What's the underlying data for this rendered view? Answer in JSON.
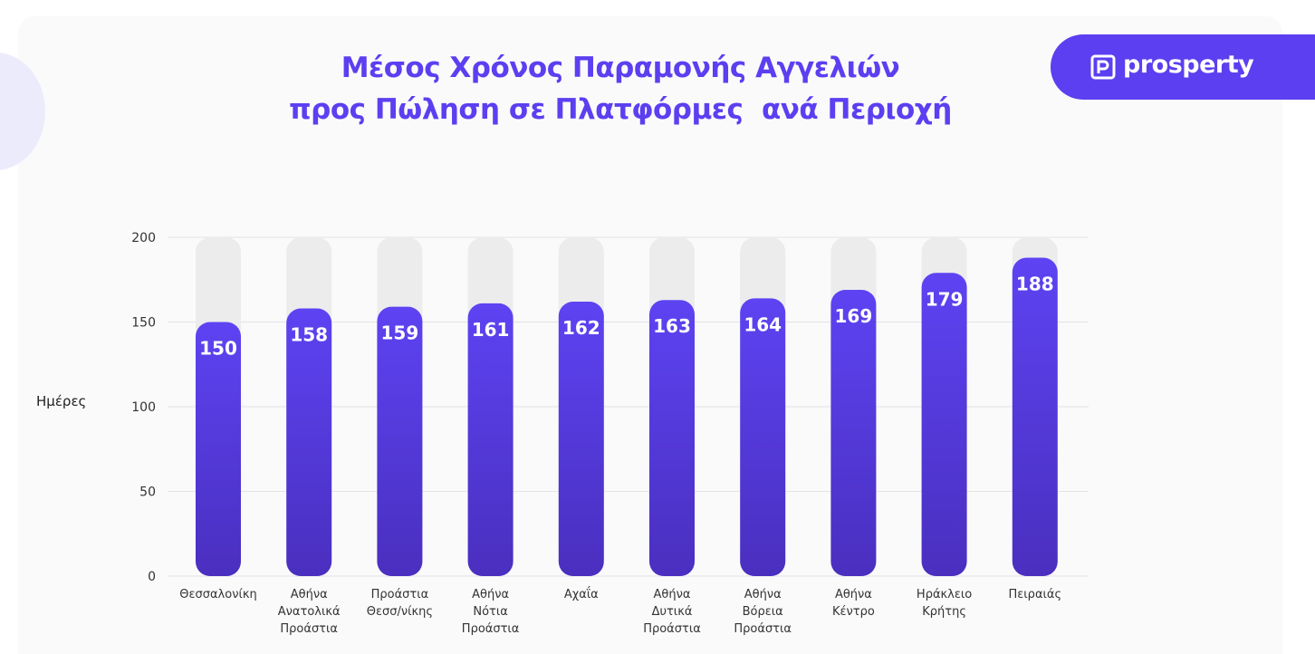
{
  "header": {
    "title_line1": "Μέσος Χρόνος Παραμονής Αγγελιών",
    "title_line2": "προς Πώληση σε Πλατφόρμες  ανά Περιοχή",
    "brand": "prosperty"
  },
  "colors": {
    "accent": "#5b3ff0",
    "bar_top": "#5d43f2",
    "bar_bottom": "#4a2fbf",
    "bar_track": "#ececed",
    "grid": "#e3e3e6"
  },
  "chart_data": {
    "type": "bar",
    "title": "Μέσος Χρόνος Παραμονής Αγγελιών προς Πώληση σε Πλατφόρμες  ανά Περιοχή",
    "ylabel": "Ημέρες",
    "xlabel": "",
    "ylim": [
      0,
      200
    ],
    "yticks": [
      "0",
      "50",
      "100",
      "150",
      "200"
    ],
    "grid": true,
    "categories": [
      [
        "Θεσσαλονίκη"
      ],
      [
        "Αθήνα",
        "Ανατολικά",
        "Προάστια"
      ],
      [
        "Προάστια",
        "Θεσσ/νίκης"
      ],
      [
        "Αθήνα",
        "Νότια",
        "Προάστια"
      ],
      [
        "Αχαΐα"
      ],
      [
        "Αθήνα",
        "Δυτικά",
        "Προάστια"
      ],
      [
        "Αθήνα",
        "Βόρεια",
        "Προάστια"
      ],
      [
        "Αθήνα",
        "Κέντρο"
      ],
      [
        "Ηράκλειο",
        "Κρήτης"
      ],
      [
        "Πειραιάς"
      ]
    ],
    "values": [
      150,
      158,
      159,
      161,
      162,
      163,
      164,
      169,
      179,
      188
    ]
  }
}
